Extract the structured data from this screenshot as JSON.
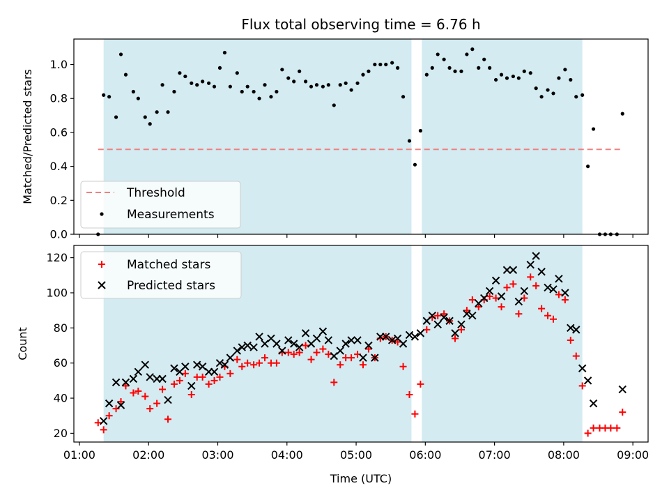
{
  "chart_data": {
    "type": "scatter",
    "title": "Flux total observing time = 6.76 h",
    "xlabel": "Time (UTC)",
    "x_ticks": [
      "01:00",
      "02:00",
      "03:00",
      "04:00",
      "05:00",
      "06:00",
      "07:00",
      "08:00",
      "09:00"
    ],
    "xlim": [
      0.92,
      9.22
    ],
    "shaded_regions": [
      [
        1.35,
        5.8
      ],
      [
        5.95,
        8.27
      ]
    ],
    "colors": {
      "shade": "#d3ebf1",
      "threshold": "#f08080",
      "measurements": "#000000",
      "matched": "#ff0000",
      "predicted": "#000000"
    },
    "top_panel": {
      "ylabel": "Matched/Predicted stars",
      "ylim": [
        0,
        1.15
      ],
      "y_ticks": [
        "0.0",
        "0.2",
        "0.4",
        "0.6",
        "0.8",
        "1.0"
      ],
      "threshold": {
        "name": "Threshold",
        "value": 0.5,
        "x_range": [
          1.27,
          8.85
        ]
      },
      "measurements_name": "Measurements",
      "legend_position": "lower-left",
      "measurements": [
        [
          1.27,
          0.0
        ],
        [
          1.35,
          0.82
        ],
        [
          1.43,
          0.81
        ],
        [
          1.53,
          0.69
        ],
        [
          1.6,
          1.06
        ],
        [
          1.67,
          0.94
        ],
        [
          1.78,
          0.84
        ],
        [
          1.85,
          0.8
        ],
        [
          1.95,
          0.69
        ],
        [
          2.02,
          0.65
        ],
        [
          2.12,
          0.72
        ],
        [
          2.2,
          0.88
        ],
        [
          2.28,
          0.72
        ],
        [
          2.37,
          0.84
        ],
        [
          2.45,
          0.95
        ],
        [
          2.53,
          0.93
        ],
        [
          2.62,
          0.89
        ],
        [
          2.7,
          0.88
        ],
        [
          2.78,
          0.9
        ],
        [
          2.87,
          0.89
        ],
        [
          2.95,
          0.87
        ],
        [
          3.03,
          0.98
        ],
        [
          3.1,
          1.07
        ],
        [
          3.18,
          0.87
        ],
        [
          3.28,
          0.95
        ],
        [
          3.35,
          0.84
        ],
        [
          3.43,
          0.87
        ],
        [
          3.52,
          0.84
        ],
        [
          3.6,
          0.8
        ],
        [
          3.68,
          0.88
        ],
        [
          3.77,
          0.81
        ],
        [
          3.85,
          0.84
        ],
        [
          3.93,
          0.97
        ],
        [
          4.02,
          0.92
        ],
        [
          4.1,
          0.9
        ],
        [
          4.18,
          0.96
        ],
        [
          4.27,
          0.9
        ],
        [
          4.35,
          0.87
        ],
        [
          4.43,
          0.88
        ],
        [
          4.52,
          0.87
        ],
        [
          4.6,
          0.88
        ],
        [
          4.68,
          0.76
        ],
        [
          4.77,
          0.88
        ],
        [
          4.85,
          0.89
        ],
        [
          4.93,
          0.85
        ],
        [
          5.02,
          0.89
        ],
        [
          5.1,
          0.94
        ],
        [
          5.18,
          0.96
        ],
        [
          5.27,
          1.0
        ],
        [
          5.35,
          1.0
        ],
        [
          5.43,
          1.0
        ],
        [
          5.52,
          1.01
        ],
        [
          5.6,
          0.98
        ],
        [
          5.68,
          0.81
        ],
        [
          5.77,
          0.55
        ],
        [
          5.85,
          0.41
        ],
        [
          5.93,
          0.61
        ],
        [
          6.02,
          0.94
        ],
        [
          6.1,
          0.98
        ],
        [
          6.18,
          1.06
        ],
        [
          6.27,
          1.03
        ],
        [
          6.35,
          0.98
        ],
        [
          6.43,
          0.96
        ],
        [
          6.52,
          0.96
        ],
        [
          6.6,
          1.06
        ],
        [
          6.68,
          1.09
        ],
        [
          6.77,
          0.98
        ],
        [
          6.85,
          1.03
        ],
        [
          6.93,
          0.98
        ],
        [
          7.02,
          0.91
        ],
        [
          7.1,
          0.94
        ],
        [
          7.18,
          0.92
        ],
        [
          7.27,
          0.93
        ],
        [
          7.35,
          0.92
        ],
        [
          7.43,
          0.96
        ],
        [
          7.52,
          0.95
        ],
        [
          7.6,
          0.86
        ],
        [
          7.68,
          0.81
        ],
        [
          7.77,
          0.85
        ],
        [
          7.85,
          0.83
        ],
        [
          7.93,
          0.92
        ],
        [
          8.02,
          0.97
        ],
        [
          8.1,
          0.91
        ],
        [
          8.18,
          0.81
        ],
        [
          8.27,
          0.82
        ],
        [
          8.35,
          0.4
        ],
        [
          8.43,
          0.62
        ],
        [
          8.52,
          0.0
        ],
        [
          8.6,
          0.0
        ],
        [
          8.68,
          0.0
        ],
        [
          8.77,
          0.0
        ],
        [
          8.85,
          0.71
        ]
      ]
    },
    "bottom_panel": {
      "ylabel": "Count",
      "ylim": [
        15,
        127
      ],
      "y_ticks": [
        "20",
        "40",
        "60",
        "80",
        "100",
        "120"
      ],
      "legend_position": "upper-left",
      "series": [
        {
          "name": "Matched stars",
          "marker": "plus",
          "points": [
            [
              1.27,
              26
            ],
            [
              1.35,
              22
            ],
            [
              1.43,
              30
            ],
            [
              1.53,
              34
            ],
            [
              1.6,
              38
            ],
            [
              1.67,
              47
            ],
            [
              1.78,
              43
            ],
            [
              1.85,
              44
            ],
            [
              1.95,
              41
            ],
            [
              2.02,
              34
            ],
            [
              2.12,
              37
            ],
            [
              2.2,
              45
            ],
            [
              2.28,
              28
            ],
            [
              2.37,
              48
            ],
            [
              2.45,
              50
            ],
            [
              2.53,
              54
            ],
            [
              2.62,
              42
            ],
            [
              2.7,
              52
            ],
            [
              2.78,
              52
            ],
            [
              2.87,
              48
            ],
            [
              2.95,
              50
            ],
            [
              3.03,
              52
            ],
            [
              3.1,
              58
            ],
            [
              3.18,
              54
            ],
            [
              3.28,
              62
            ],
            [
              3.35,
              58
            ],
            [
              3.43,
              60
            ],
            [
              3.52,
              59
            ],
            [
              3.6,
              60
            ],
            [
              3.68,
              63
            ],
            [
              3.77,
              60
            ],
            [
              3.85,
              60
            ],
            [
              3.93,
              66
            ],
            [
              4.02,
              66
            ],
            [
              4.1,
              65
            ],
            [
              4.18,
              66
            ],
            [
              4.27,
              70
            ],
            [
              4.35,
              62
            ],
            [
              4.43,
              66
            ],
            [
              4.52,
              68
            ],
            [
              4.6,
              65
            ],
            [
              4.68,
              49
            ],
            [
              4.77,
              59
            ],
            [
              4.85,
              63
            ],
            [
              4.93,
              63
            ],
            [
              5.02,
              65
            ],
            [
              5.1,
              59
            ],
            [
              5.18,
              68
            ],
            [
              5.27,
              63
            ],
            [
              5.35,
              74
            ],
            [
              5.43,
              75
            ],
            [
              5.52,
              73
            ],
            [
              5.6,
              72
            ],
            [
              5.68,
              58
            ],
            [
              5.77,
              42
            ],
            [
              5.85,
              31
            ],
            [
              5.93,
              48
            ],
            [
              6.02,
              79
            ],
            [
              6.1,
              86
            ],
            [
              6.18,
              87
            ],
            [
              6.27,
              88
            ],
            [
              6.35,
              84
            ],
            [
              6.43,
              74
            ],
            [
              6.52,
              79
            ],
            [
              6.6,
              90
            ],
            [
              6.68,
              96
            ],
            [
              6.77,
              92
            ],
            [
              6.85,
              96
            ],
            [
              6.93,
              98
            ],
            [
              7.02,
              97
            ],
            [
              7.1,
              92
            ],
            [
              7.18,
              103
            ],
            [
              7.27,
              105
            ],
            [
              7.35,
              88
            ],
            [
              7.43,
              97
            ],
            [
              7.52,
              109
            ],
            [
              7.6,
              104
            ],
            [
              7.68,
              91
            ],
            [
              7.77,
              87
            ],
            [
              7.85,
              85
            ],
            [
              7.93,
              99
            ],
            [
              8.02,
              96
            ],
            [
              8.1,
              73
            ],
            [
              8.18,
              64
            ],
            [
              8.27,
              47
            ],
            [
              8.35,
              20
            ],
            [
              8.43,
              23
            ],
            [
              8.52,
              23
            ],
            [
              8.6,
              23
            ],
            [
              8.68,
              23
            ],
            [
              8.77,
              23
            ],
            [
              8.85,
              32
            ]
          ]
        },
        {
          "name": "Predicted stars",
          "marker": "x",
          "points": [
            [
              1.35,
              27
            ],
            [
              1.43,
              37
            ],
            [
              1.53,
              49
            ],
            [
              1.6,
              36
            ],
            [
              1.67,
              49
            ],
            [
              1.78,
              51
            ],
            [
              1.85,
              55
            ],
            [
              1.95,
              59
            ],
            [
              2.02,
              52
            ],
            [
              2.12,
              51
            ],
            [
              2.2,
              51
            ],
            [
              2.28,
              39
            ],
            [
              2.37,
              57
            ],
            [
              2.45,
              55
            ],
            [
              2.53,
              58
            ],
            [
              2.62,
              47
            ],
            [
              2.7,
              59
            ],
            [
              2.78,
              58
            ],
            [
              2.87,
              55
            ],
            [
              2.95,
              55
            ],
            [
              3.03,
              60
            ],
            [
              3.1,
              59
            ],
            [
              3.18,
              63
            ],
            [
              3.28,
              67
            ],
            [
              3.35,
              69
            ],
            [
              3.43,
              70
            ],
            [
              3.52,
              69
            ],
            [
              3.6,
              75
            ],
            [
              3.68,
              71
            ],
            [
              3.77,
              74
            ],
            [
              3.85,
              71
            ],
            [
              3.93,
              67
            ],
            [
              4.02,
              73
            ],
            [
              4.1,
              71
            ],
            [
              4.18,
              69
            ],
            [
              4.27,
              77
            ],
            [
              4.35,
              71
            ],
            [
              4.43,
              74
            ],
            [
              4.52,
              78
            ],
            [
              4.6,
              73
            ],
            [
              4.68,
              64
            ],
            [
              4.77,
              67
            ],
            [
              4.85,
              71
            ],
            [
              4.93,
              73
            ],
            [
              5.02,
              73
            ],
            [
              5.1,
              63
            ],
            [
              5.18,
              70
            ],
            [
              5.27,
              63
            ],
            [
              5.35,
              75
            ],
            [
              5.43,
              75
            ],
            [
              5.52,
              73
            ],
            [
              5.6,
              74
            ],
            [
              5.68,
              71
            ],
            [
              5.77,
              76
            ],
            [
              5.85,
              75
            ],
            [
              5.93,
              77
            ],
            [
              6.02,
              84
            ],
            [
              6.1,
              87
            ],
            [
              6.18,
              82
            ],
            [
              6.27,
              86
            ],
            [
              6.35,
              84
            ],
            [
              6.43,
              77
            ],
            [
              6.52,
              82
            ],
            [
              6.6,
              88
            ],
            [
              6.68,
              87
            ],
            [
              6.77,
              94
            ],
            [
              6.85,
              97
            ],
            [
              6.93,
              101
            ],
            [
              7.02,
              107
            ],
            [
              7.1,
              98
            ],
            [
              7.18,
              113
            ],
            [
              7.27,
              113
            ],
            [
              7.35,
              95
            ],
            [
              7.43,
              101
            ],
            [
              7.52,
              116
            ],
            [
              7.6,
              121
            ],
            [
              7.68,
              112
            ],
            [
              7.77,
              103
            ],
            [
              7.85,
              102
            ],
            [
              7.93,
              108
            ],
            [
              8.02,
              100
            ],
            [
              8.1,
              80
            ],
            [
              8.18,
              79
            ],
            [
              8.27,
              57
            ],
            [
              8.35,
              50
            ],
            [
              8.43,
              37
            ],
            [
              8.85,
              45
            ]
          ]
        }
      ]
    }
  }
}
